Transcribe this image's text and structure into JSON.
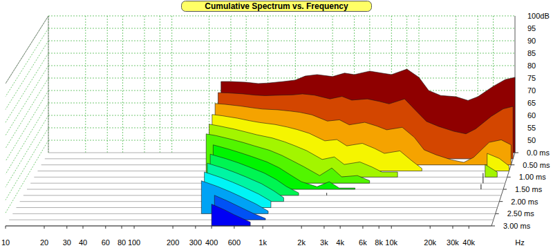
{
  "chart_data": {
    "type": "waterfall",
    "title": "Cumulative Spectrum vs. Frequency",
    "xlabel": "Hz",
    "log": "x",
    "grid": true,
    "xlim": [
      10,
      60000
    ],
    "xticks": [
      10,
      20,
      30,
      40,
      60,
      80,
      100,
      200,
      300,
      400,
      600,
      {
        "value": 1000,
        "label": "1k"
      },
      {
        "value": 2000,
        "label": "2k"
      },
      {
        "value": 3000,
        "label": "3k"
      },
      {
        "value": 4000,
        "label": "4k"
      },
      {
        "value": 6000,
        "label": "6k"
      },
      {
        "value": 8000,
        "label": "8k"
      },
      {
        "value": 10000,
        "label": "10k"
      },
      {
        "value": 20000,
        "label": "20k"
      },
      {
        "value": 30000,
        "label": "30k"
      },
      {
        "value": 40000,
        "label": "40k"
      }
    ],
    "ylim": [
      45,
      100
    ],
    "yticks": [
      50,
      55,
      60,
      65,
      70,
      75,
      80,
      85,
      90,
      95,
      {
        "value": 100,
        "label": "100dB"
      }
    ],
    "zlim": [
      0,
      3
    ],
    "zticks": [
      {
        "value": 0,
        "label": "0.0 ms"
      },
      {
        "value": 0.5,
        "label": "0.50 ms"
      },
      {
        "value": 1,
        "label": "1.00 ms"
      },
      {
        "value": 1.5,
        "label": "1.50 ms"
      },
      {
        "value": 2,
        "label": "2.00 ms"
      },
      {
        "value": 2.5,
        "label": "2.50 ms"
      },
      {
        "value": 3,
        "label": "3.00 ms"
      }
    ],
    "x": [
      250,
      300,
      400,
      500,
      600,
      800,
      1000,
      1200,
      1500,
      2000,
      2500,
      3000,
      4000,
      5000,
      6000,
      8000,
      10000,
      12000,
      15000,
      20000,
      25000,
      30000,
      40000,
      50000,
      60000
    ],
    "series": [
      {
        "z": 0,
        "values": [
          73.6,
          73.6,
          73.3,
          72.8,
          73,
          73.6,
          74.2,
          75.8,
          76.4,
          75.6,
          77,
          76.4,
          77.8,
          77,
          76.4,
          78.6,
          75.3,
          70,
          68,
          67.5,
          66,
          67.5,
          71.7,
          74.4,
          75.3
        ]
      },
      {
        "z": 0.25,
        "values": [
          71.5,
          71.4,
          71,
          70.5,
          70.3,
          70.5,
          70.6,
          71,
          70.5,
          69,
          70,
          68.5,
          69,
          68,
          67,
          69,
          64,
          60,
          58,
          56,
          55,
          57,
          62,
          65,
          66
        ]
      },
      {
        "z": 0.5,
        "values": [
          69.5,
          69.2,
          68.5,
          67.8,
          67.3,
          67,
          66.5,
          66,
          65,
          62.5,
          63,
          61,
          62,
          60.5,
          59,
          60,
          56,
          51,
          49,
          47,
          46,
          48,
          54,
          55,
          53
        ]
      },
      {
        "z": 0.75,
        "values": [
          67.5,
          67,
          66,
          65,
          64.3,
          63.5,
          62.5,
          61.5,
          60,
          57,
          57.5,
          55,
          56,
          54,
          52,
          53,
          49,
          46,
          null,
          null,
          null,
          null,
          52,
          50,
          47
        ]
      },
      {
        "z": 1,
        "values": [
          66,
          65.3,
          64,
          62.8,
          61.8,
          60.5,
          59,
          57.5,
          55.5,
          52,
          53,
          50,
          51,
          49,
          47,
          47,
          null,
          null,
          null,
          null,
          null,
          null,
          50,
          47,
          null
        ]
      },
      {
        "z": 1.25,
        "values": [
          64.5,
          63.8,
          62.3,
          61,
          59.8,
          58,
          56,
          54,
          51.5,
          48,
          51,
          47.5,
          48,
          46,
          null,
          null,
          null,
          null,
          null,
          null,
          null,
          null,
          49,
          null,
          null
        ]
      },
      {
        "z": 1.5,
        "values": [
          null,
          62.5,
          60.8,
          59.3,
          58,
          55.8,
          53.5,
          51,
          48,
          46,
          48,
          45.5,
          45.5,
          null,
          null,
          null,
          null,
          null,
          null,
          null,
          null,
          null,
          47,
          null,
          null
        ]
      },
      {
        "z": 1.75,
        "values": [
          null,
          61.2,
          59.4,
          57.8,
          56.3,
          53.8,
          51.2,
          48.5,
          46,
          null,
          46,
          null,
          null,
          null,
          null,
          null,
          null,
          null,
          null,
          null,
          null,
          null,
          null,
          null,
          null
        ]
      },
      {
        "z": 2,
        "values": [
          null,
          60,
          58.1,
          56.3,
          54.7,
          52,
          49.2,
          46.5,
          null,
          null,
          null,
          null,
          null,
          null,
          null,
          null,
          null,
          null,
          null,
          null,
          null,
          null,
          null,
          null,
          null
        ]
      },
      {
        "z": 2.25,
        "values": [
          null,
          58.9,
          56.8,
          54.9,
          53.2,
          50.3,
          47.5,
          null,
          null,
          null,
          null,
          null,
          null,
          null,
          null,
          null,
          null,
          null,
          null,
          null,
          null,
          null,
          null,
          null,
          null
        ]
      },
      {
        "z": 2.5,
        "values": [
          null,
          57.8,
          55.6,
          53.6,
          51.8,
          48.8,
          46,
          null,
          null,
          null,
          null,
          null,
          null,
          null,
          null,
          null,
          null,
          null,
          null,
          null,
          null,
          null,
          null,
          null,
          null
        ]
      },
      {
        "z": 2.75,
        "values": [
          null,
          null,
          54.5,
          52.4,
          50.5,
          47.5,
          45.5,
          null,
          null,
          null,
          null,
          null,
          null,
          null,
          null,
          null,
          null,
          null,
          null,
          null,
          null,
          null,
          null,
          null,
          null
        ]
      },
      {
        "z": 3,
        "values": [
          null,
          null,
          53.4,
          51.3,
          49.3,
          46.5,
          null,
          null,
          null,
          null,
          null,
          null,
          null,
          null,
          null,
          null,
          null,
          null,
          null,
          null,
          null,
          null,
          null,
          null,
          null
        ]
      }
    ]
  }
}
